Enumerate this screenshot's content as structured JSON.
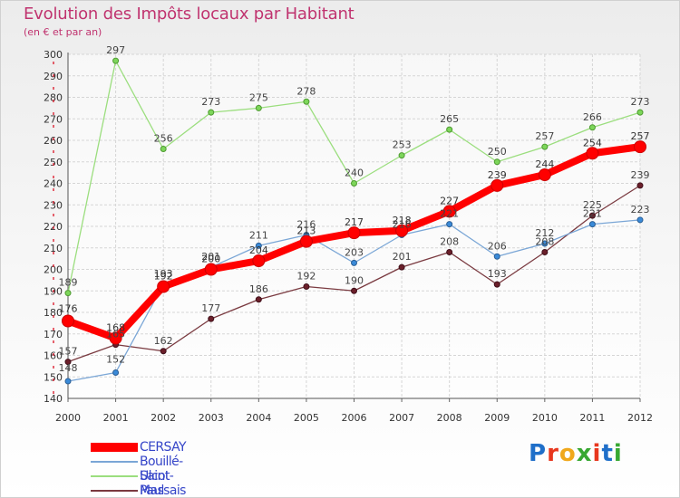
{
  "title": "Evolution des Impôts locaux par Habitant",
  "subtitle": "(en € et par an)",
  "logo": "Proxiti",
  "chart_data": {
    "type": "line",
    "title": "Evolution des Impôts locaux par Habitant",
    "subtitle": "(en € et par an)",
    "xlabel": "",
    "ylabel": "",
    "x": [
      "2000",
      "2001",
      "2002",
      "2003",
      "2004",
      "2005",
      "2006",
      "2007",
      "2008",
      "2009",
      "2010",
      "2011",
      "2012"
    ],
    "ylim": [
      140,
      300
    ],
    "yticks": [
      140,
      150,
      160,
      170,
      180,
      190,
      200,
      210,
      220,
      230,
      240,
      250,
      260,
      270,
      280,
      290,
      300
    ],
    "grid": true,
    "legend_position": "bottom-left",
    "series": [
      {
        "name": "CERSAY",
        "color": "#ff0000",
        "values": [
          176,
          168,
          192,
          200,
          204,
          213,
          217,
          218,
          227,
          239,
          244,
          254,
          257
        ]
      },
      {
        "name": "Bouillé-Saint-Paul",
        "color": "#4a90d9",
        "values": [
          148,
          152,
          193,
          201,
          211,
          216,
          203,
          216,
          221,
          206,
          212,
          221,
          223
        ]
      },
      {
        "name": "Ulcot",
        "color": "#7dd65a",
        "values": [
          189,
          297,
          256,
          273,
          275,
          278,
          240,
          253,
          265,
          250,
          257,
          266,
          273
        ]
      },
      {
        "name": "Massais",
        "color": "#6b1f2a",
        "values": [
          157,
          165,
          162,
          177,
          186,
          192,
          190,
          201,
          208,
          193,
          208,
          225,
          239
        ]
      }
    ]
  }
}
